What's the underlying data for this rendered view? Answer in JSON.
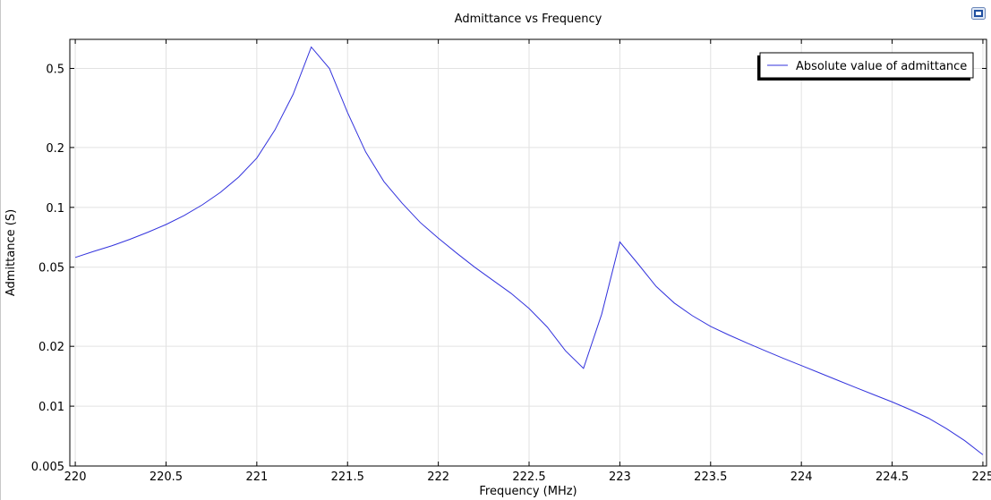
{
  "icons": {
    "corner": "plot-toolbar-icon"
  },
  "colors": {
    "series": "#3333dd",
    "grid": "#e2e2e2",
    "axis": "#000000",
    "background": "#ffffff"
  },
  "chart_data": {
    "type": "line",
    "title": "Admittance vs Frequency",
    "xlabel": "Frequency (MHz)",
    "ylabel": "Admittance (S)",
    "xlim": [
      219.97,
      225.02
    ],
    "ylim": [
      0.005,
      0.7
    ],
    "yscale": "log",
    "grid": true,
    "legend_position": "top-right",
    "x_ticks": [
      220,
      220.5,
      221,
      221.5,
      222,
      222.5,
      223,
      223.5,
      224,
      224.5,
      225
    ],
    "x_tick_labels": [
      "220",
      "220.5",
      "221",
      "221.5",
      "222",
      "222.5",
      "223",
      "223.5",
      "224",
      "224.5",
      "225"
    ],
    "y_ticks": [
      0.005,
      0.01,
      0.02,
      0.05,
      0.1,
      0.2,
      0.5
    ],
    "y_tick_labels": [
      "0.005",
      "0.01",
      "0.02",
      "0.05",
      "0.1",
      "0.2",
      "0.5"
    ],
    "series": [
      {
        "name": "Absolute value of admittance",
        "x": [
          220.0,
          220.1,
          220.2,
          220.3,
          220.4,
          220.5,
          220.6,
          220.7,
          220.8,
          220.9,
          221.0,
          221.1,
          221.2,
          221.3,
          221.4,
          221.5,
          221.6,
          221.7,
          221.8,
          221.9,
          222.0,
          222.1,
          222.2,
          222.3,
          222.4,
          222.5,
          222.6,
          222.7,
          222.8,
          222.9,
          223.0,
          223.1,
          223.2,
          223.3,
          223.4,
          223.5,
          223.6,
          223.7,
          223.8,
          223.9,
          224.0,
          224.1,
          224.2,
          224.3,
          224.4,
          224.5,
          224.6,
          224.7,
          224.8,
          224.9,
          225.0
        ],
        "y": [
          0.056,
          0.06,
          0.064,
          0.069,
          0.075,
          0.082,
          0.091,
          0.103,
          0.119,
          0.142,
          0.177,
          0.245,
          0.37,
          0.64,
          0.5,
          0.3,
          0.19,
          0.135,
          0.105,
          0.084,
          0.07,
          0.059,
          0.05,
          0.043,
          0.037,
          0.031,
          0.025,
          0.019,
          0.0155,
          0.029,
          0.067,
          0.052,
          0.04,
          0.033,
          0.0285,
          0.0252,
          0.0228,
          0.0208,
          0.019,
          0.0174,
          0.016,
          0.0147,
          0.0135,
          0.0124,
          0.0114,
          0.0105,
          0.0096,
          0.0087,
          0.0077,
          0.0067,
          0.0057
        ]
      }
    ]
  }
}
